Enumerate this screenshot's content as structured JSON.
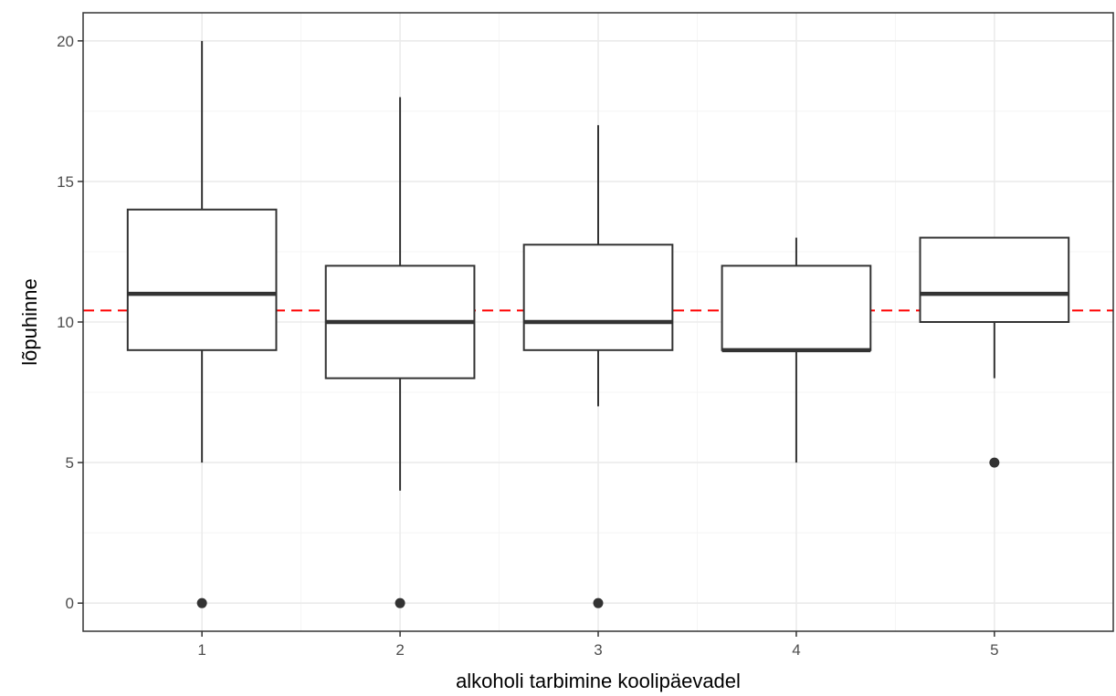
{
  "chart_data": {
    "type": "boxplot",
    "xlabel": "alkoholi tarbimine koolipäevadel",
    "ylabel": "lõpuhinne",
    "categories": [
      "1",
      "2",
      "3",
      "4",
      "5"
    ],
    "y_ticks": [
      "0",
      "5",
      "10",
      "15",
      "20"
    ],
    "ylim": [
      -1,
      21
    ],
    "xlim": [
      0.4,
      5.6
    ],
    "grid": true,
    "boxes": [
      {
        "category": "1",
        "whisker_low": 5,
        "q1": 9,
        "median": 11,
        "q3": 14,
        "whisker_high": 20,
        "outliers": [
          0
        ]
      },
      {
        "category": "2",
        "whisker_low": 4,
        "q1": 8,
        "median": 10,
        "q3": 12,
        "whisker_high": 18,
        "outliers": [
          0
        ]
      },
      {
        "category": "3",
        "whisker_low": 7,
        "q1": 9,
        "median": 10,
        "q3": 12.75,
        "whisker_high": 17,
        "outliers": [
          0
        ]
      },
      {
        "category": "4",
        "whisker_low": 5,
        "q1": 9,
        "median": 9,
        "q3": 12,
        "whisker_high": 13,
        "outliers": []
      },
      {
        "category": "5",
        "whisker_low": 8,
        "q1": 10,
        "median": 11,
        "q3": 13,
        "whisker_high": 13,
        "outliers": [
          5
        ]
      }
    ],
    "reference_line": {
      "y": 10.41,
      "color": "#ff0000",
      "style": "dashed"
    },
    "colors": {
      "box": "#333333",
      "grid_major": "#ebebeb",
      "grid_minor": "#f5f5f5",
      "panel_border": "#333333"
    }
  }
}
